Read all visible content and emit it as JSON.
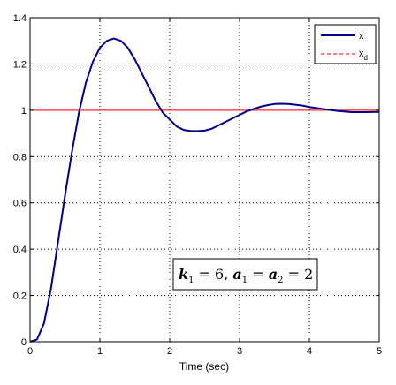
{
  "chart_data": {
    "type": "line",
    "xlabel": "Time (sec)",
    "ylabel": "",
    "title": "",
    "xlim": [
      0,
      5
    ],
    "ylim": [
      0,
      1.4
    ],
    "xticks": [
      0,
      1,
      2,
      3,
      4,
      5
    ],
    "yticks": [
      0,
      0.2,
      0.4,
      0.6,
      0.8,
      1,
      1.2,
      1.4
    ],
    "xtick_labels": [
      "0",
      "1",
      "2",
      "3",
      "4",
      "5"
    ],
    "ytick_labels": [
      "0",
      "0.2",
      "0.4",
      "0.6",
      "0.8",
      "1",
      "1.2",
      "1.4"
    ],
    "grid": true,
    "legend_position": "top-right",
    "series": [
      {
        "name": "x",
        "color": "#00008b",
        "style": "solid",
        "x": [
          0,
          0.1,
          0.2,
          0.3,
          0.4,
          0.5,
          0.6,
          0.7,
          0.8,
          0.9,
          1.0,
          1.1,
          1.2,
          1.3,
          1.4,
          1.5,
          1.6,
          1.7,
          1.8,
          1.9,
          2.0,
          2.1,
          2.2,
          2.3,
          2.4,
          2.5,
          2.6,
          2.7,
          2.8,
          2.9,
          3.0,
          3.1,
          3.2,
          3.3,
          3.4,
          3.5,
          3.6,
          3.7,
          3.8,
          3.9,
          4.0,
          4.2,
          4.4,
          4.6,
          4.8,
          5.0
        ],
        "y": [
          0,
          0.01,
          0.08,
          0.23,
          0.43,
          0.63,
          0.82,
          0.99,
          1.12,
          1.21,
          1.27,
          1.3,
          1.31,
          1.3,
          1.27,
          1.22,
          1.16,
          1.1,
          1.04,
          0.99,
          0.96,
          0.93,
          0.915,
          0.91,
          0.91,
          0.912,
          0.92,
          0.935,
          0.95,
          0.965,
          0.98,
          0.995,
          1.005,
          1.015,
          1.022,
          1.027,
          1.028,
          1.027,
          1.024,
          1.02,
          1.014,
          1.005,
          0.997,
          0.992,
          0.992,
          0.993
        ]
      },
      {
        "name": "x_d",
        "color": "#ff0000",
        "style": "dashed",
        "x": [
          0,
          5
        ],
        "y": [
          1,
          1
        ]
      }
    ],
    "legend": {
      "entries": [
        {
          "label": "x",
          "subscript": ""
        },
        {
          "label": "x",
          "subscript": "d"
        }
      ]
    },
    "annotation": {
      "text_parts": [
        "k",
        "1",
        " = 6, ",
        "a",
        "1",
        " = ",
        "a",
        "2",
        " = 2"
      ]
    }
  }
}
